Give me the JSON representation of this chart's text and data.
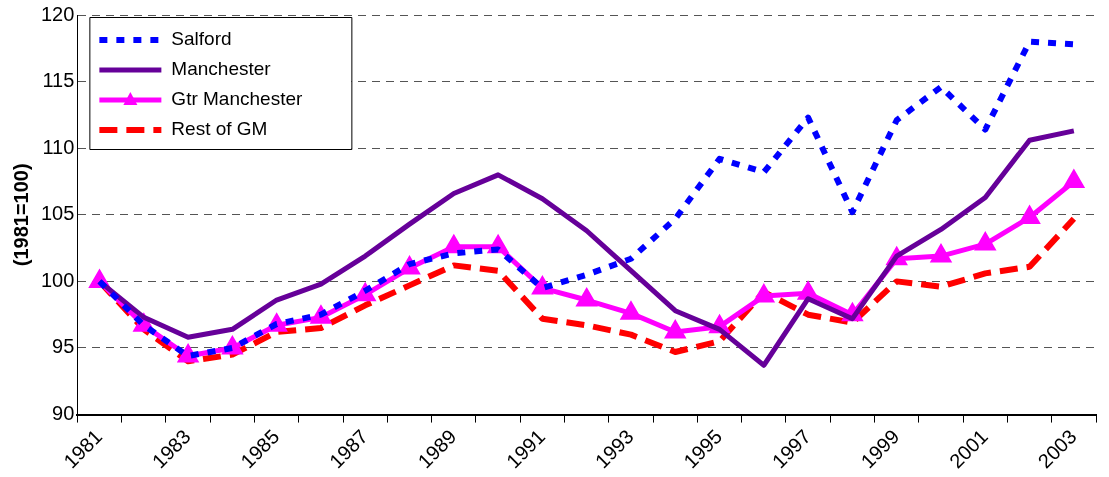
{
  "chart_data": {
    "type": "line",
    "ylabel": "(1981=100)",
    "categories": [
      "1981",
      null,
      "1983",
      null,
      "1985",
      null,
      "1987",
      null,
      "1989",
      null,
      "1991",
      null,
      "1993",
      null,
      "1995",
      null,
      "1997",
      null,
      "1999",
      null,
      "2001",
      null,
      "2003"
    ],
    "ylim": [
      90,
      120
    ],
    "yticks": [
      90,
      95,
      100,
      105,
      110,
      115,
      120
    ],
    "grid": "y",
    "legend": "top left",
    "series": [
      {
        "name": "Salford",
        "color": "#0000ff",
        "line_style": "dotted",
        "marker": "none",
        "values": [
          100,
          96.7,
          94.4,
          95.0,
          96.8,
          97.5,
          99.3,
          101.3,
          102.1,
          102.4,
          99.5,
          100.5,
          101.7,
          104.7,
          109.2,
          108.2,
          112.3,
          105.2,
          112.1,
          114.6,
          111.4,
          118.0,
          117.8
        ]
      },
      {
        "name": "Manchester",
        "color": "#660099",
        "line_style": "solid",
        "marker": "none",
        "values": [
          100,
          97.3,
          95.8,
          96.4,
          98.6,
          99.8,
          101.9,
          104.3,
          106.6,
          108.0,
          106.2,
          103.8,
          100.8,
          97.8,
          96.4,
          93.7,
          98.7,
          97.2,
          101.9,
          103.9,
          106.3,
          110.6,
          111.3
        ]
      },
      {
        "name": "Gtr Manchester",
        "color": "#ff00ff",
        "line_style": "solid",
        "marker": "triangle",
        "values": [
          100,
          96.7,
          94.4,
          95.0,
          96.7,
          97.3,
          99.0,
          101.0,
          102.6,
          102.6,
          99.5,
          98.6,
          97.6,
          96.2,
          96.6,
          98.9,
          99.1,
          97.5,
          101.7,
          101.9,
          102.8,
          104.8,
          107.5
        ]
      },
      {
        "name": "Rest of GM",
        "color": "#ff0000",
        "line_style": "dashed",
        "marker": "none",
        "values": [
          100,
          96.4,
          94.0,
          94.5,
          96.2,
          96.5,
          98.2,
          99.7,
          101.2,
          100.8,
          97.2,
          96.7,
          96.0,
          94.7,
          95.5,
          99.2,
          97.5,
          96.9,
          100.0,
          99.6,
          100.6,
          101.1,
          104.7
        ]
      }
    ]
  }
}
